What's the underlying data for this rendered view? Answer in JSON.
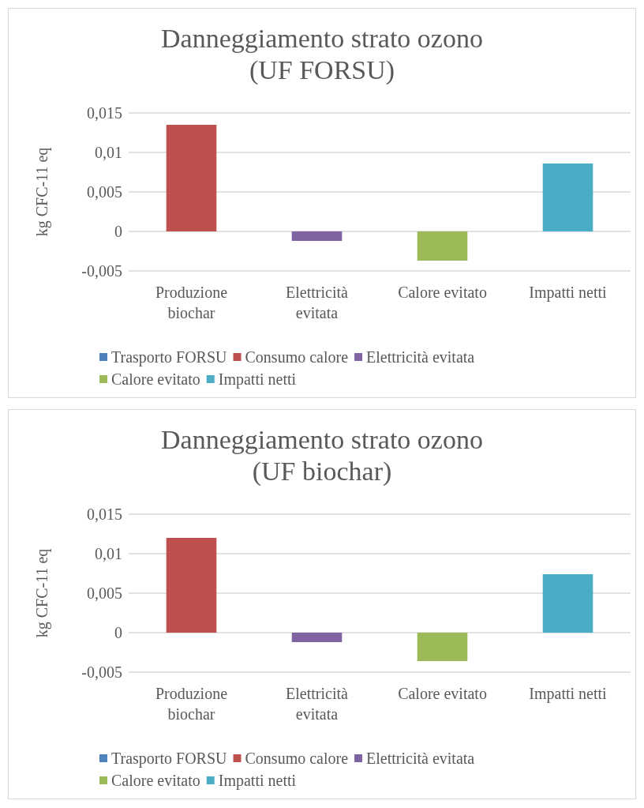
{
  "chart_data": [
    {
      "type": "bar",
      "title": "Danneggiamento strato ozono\n(UF FORSU)",
      "ylabel": "kg CFC-11 eq",
      "stacked": true,
      "categories": [
        "Produzione\nbiochar",
        "Elettricità\nevitata",
        "Calore evitato",
        "Impatti netti"
      ],
      "ylim": [
        -0.005,
        0.015
      ],
      "yticks": [
        {
          "value": -0.005,
          "label": "-0,005"
        },
        {
          "value": 0,
          "label": "0"
        },
        {
          "value": 0.005,
          "label": "0,005"
        },
        {
          "value": 0.01,
          "label": "0,01"
        },
        {
          "value": 0.015,
          "label": "0,015"
        }
      ],
      "grid": "y",
      "legend": "bottom",
      "series": [
        {
          "name": "Trasporto FORSU",
          "color": "#4f81bd",
          "values": [
            0,
            null,
            null,
            null
          ]
        },
        {
          "name": "Consumo calore",
          "color": "#c0504d",
          "values": [
            0.0135,
            null,
            null,
            null
          ]
        },
        {
          "name": "Elettricità evitata",
          "color": "#8064a2",
          "values": [
            null,
            -0.0012,
            null,
            null
          ]
        },
        {
          "name": "Calore evitato",
          "color": "#9bbb59",
          "values": [
            null,
            null,
            -0.0037,
            null
          ]
        },
        {
          "name": "Impatti netti",
          "color": "#4bacc6",
          "values": [
            null,
            null,
            null,
            0.0086
          ]
        }
      ]
    },
    {
      "type": "bar",
      "title": "Danneggiamento strato ozono\n(UF biochar)",
      "ylabel": "kg CFC-11 eq",
      "stacked": true,
      "categories": [
        "Produzione\nbiochar",
        "Elettricità\nevitata",
        "Calore evitato",
        "Impatti netti"
      ],
      "ylim": [
        -0.005,
        0.015
      ],
      "yticks": [
        {
          "value": -0.005,
          "label": "-0,005"
        },
        {
          "value": 0,
          "label": "0"
        },
        {
          "value": 0.005,
          "label": "0,005"
        },
        {
          "value": 0.01,
          "label": "0,01"
        },
        {
          "value": 0.015,
          "label": "0,015"
        }
      ],
      "grid": "y",
      "legend": "bottom",
      "series": [
        {
          "name": "Trasporto FORSU",
          "color": "#4f81bd",
          "values": [
            0,
            null,
            null,
            null
          ]
        },
        {
          "name": "Consumo calore",
          "color": "#c0504d",
          "values": [
            0.012,
            null,
            null,
            null
          ]
        },
        {
          "name": "Elettricità evitata",
          "color": "#8064a2",
          "values": [
            null,
            -0.0012,
            null,
            null
          ]
        },
        {
          "name": "Calore evitato",
          "color": "#9bbb59",
          "values": [
            null,
            null,
            -0.0036,
            null
          ]
        },
        {
          "name": "Impatti netti",
          "color": "#4bacc6",
          "values": [
            null,
            null,
            null,
            0.0074
          ]
        }
      ]
    }
  ]
}
